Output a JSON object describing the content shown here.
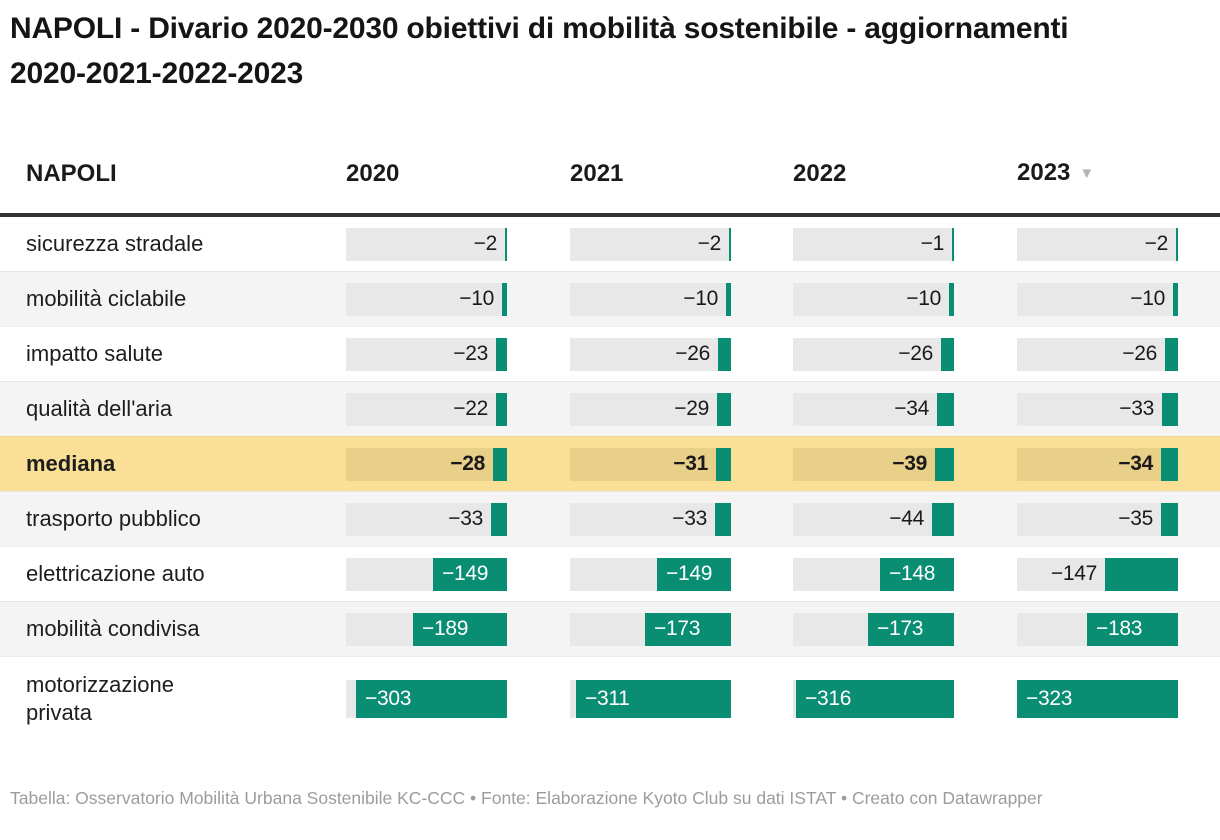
{
  "chart_data": {
    "type": "table",
    "title": "NAPOLI - Divario 2020-2030 obiettivi di mobilità sostenibile - aggiornamenti 2020-2021-2022-2023",
    "row_header": "NAPOLI",
    "columns": [
      "2020",
      "2021",
      "2022",
      "2023"
    ],
    "sorted_by": "2023",
    "sort_icon": "▼",
    "bar_axis_max": 323,
    "rows": [
      {
        "label": "sicurezza stradale",
        "values": [
          -2,
          -2,
          -1,
          -2
        ]
      },
      {
        "label": "mobilità ciclabile",
        "values": [
          -10,
          -10,
          -10,
          -10
        ]
      },
      {
        "label": "impatto salute",
        "values": [
          -23,
          -26,
          -26,
          -26
        ]
      },
      {
        "label": "qualità dell'aria",
        "values": [
          -22,
          -29,
          -34,
          -33
        ]
      },
      {
        "label": "mediana",
        "values": [
          -28,
          -31,
          -39,
          -34
        ],
        "highlight": true
      },
      {
        "label": "trasporto pubblico",
        "values": [
          -33,
          -33,
          -44,
          -35
        ]
      },
      {
        "label": "elettricazione auto",
        "values": [
          -149,
          -149,
          -148,
          -147
        ],
        "label_inside_bar": [
          true,
          true,
          true,
          false
        ]
      },
      {
        "label": "mobilità condivisa",
        "values": [
          -189,
          -173,
          -173,
          -183
        ],
        "label_inside_bar": [
          true,
          true,
          true,
          true
        ]
      },
      {
        "label": "motorizzazione\nprivata",
        "values": [
          -303,
          -311,
          -316,
          -323
        ],
        "label_inside_bar": [
          true,
          true,
          true,
          true
        ],
        "tall": true
      }
    ]
  },
  "colors": {
    "bar_green": "#0a8e73",
    "cell_gray": "#e8e8e8",
    "stripe_gray": "#f4f4f4",
    "highlight_row": "#fadf96",
    "highlight_cell": "#e9d089",
    "header_rule": "#333333"
  },
  "footer": {
    "text": "Tabella: Osservatorio Mobilità Urbana Sostenibile KC-CCC • Fonte: Elaborazione Kyoto Club su dati ISTAT • Creato con Datawrapper"
  }
}
